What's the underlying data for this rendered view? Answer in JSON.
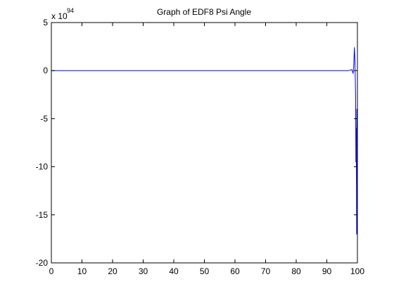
{
  "chart_data": {
    "type": "line",
    "title": "Graph of EDF8 Psi Angle",
    "xlabel": "",
    "ylabel": "",
    "xlim": [
      0,
      100
    ],
    "ylim": [
      -20,
      5
    ],
    "x_ticks": [
      0,
      10,
      20,
      30,
      40,
      50,
      60,
      70,
      80,
      90,
      100
    ],
    "y_ticks": [
      5,
      0,
      -5,
      -10,
      -15,
      -20
    ],
    "x_tick_labels": [
      "0",
      "10",
      "20",
      "30",
      "40",
      "50",
      "60",
      "70",
      "80",
      "90",
      "100"
    ],
    "y_tick_labels": [
      "5",
      "0",
      "-5",
      "-10",
      "-15",
      "-20"
    ],
    "y_multiplier_base": "x 10",
    "y_multiplier_exponent": "94",
    "grid": false,
    "legend": "none",
    "line_color": "#0000ff",
    "series": [
      {
        "x": [
          0,
          10,
          20,
          30,
          40,
          50,
          60,
          70,
          80,
          90,
          97,
          98.2,
          98.6,
          98.8,
          99.0,
          99.2,
          99.4,
          99.5,
          99.6,
          99.7,
          99.75,
          99.8,
          99.85,
          99.9,
          99.95,
          100
        ],
        "values": [
          0,
          0,
          0,
          0,
          0,
          0,
          0,
          0,
          0,
          0,
          0,
          0.1,
          -0.3,
          0.5,
          2.4,
          1.0,
          -2.5,
          -9.5,
          -6.0,
          -12.0,
          -17.0,
          -4.0,
          -15.0,
          -7.0,
          -17.0,
          -8.0
        ]
      }
    ]
  }
}
